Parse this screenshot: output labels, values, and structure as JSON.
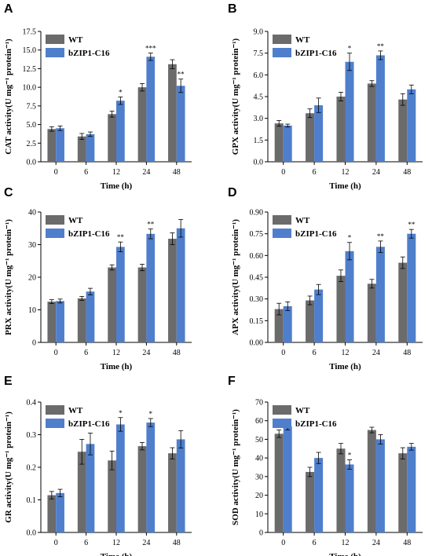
{
  "colors": {
    "wt": "#6b6b6b",
    "bzip": "#4f7fcc",
    "axis": "#000000",
    "error": "#000000"
  },
  "chart_data": [
    {
      "id": "A",
      "panel_label": "A",
      "type": "bar",
      "categories": [
        "0",
        "6",
        "12",
        "24",
        "48"
      ],
      "xlabel": "Time (h)",
      "ylabel": "CAT activity(U mg⁻¹ protein⁻¹)",
      "ylim": [
        0,
        17.5
      ],
      "yticks": [
        "0.0",
        "2.5",
        "5.0",
        "7.5",
        "10.0",
        "12.5",
        "15.0",
        "17.5"
      ],
      "legend_position": "top-left",
      "series": [
        {
          "name": "WT",
          "values": [
            4.4,
            3.4,
            6.4,
            10.0,
            13.1
          ],
          "errors": [
            0.3,
            0.4,
            0.4,
            0.5,
            0.6
          ],
          "significance": [
            "",
            "",
            "",
            "",
            ""
          ]
        },
        {
          "name": "bZIP1-C16",
          "values": [
            4.5,
            3.7,
            8.2,
            14.1,
            10.2
          ],
          "errors": [
            0.3,
            0.3,
            0.5,
            0.5,
            0.9
          ],
          "significance": [
            "",
            "",
            "*",
            "***",
            "**"
          ]
        }
      ]
    },
    {
      "id": "B",
      "panel_label": "B",
      "type": "bar",
      "categories": [
        "0",
        "6",
        "12",
        "24",
        "48"
      ],
      "xlabel": "Time (h)",
      "ylabel": "GPX activity(U mg⁻¹ protein⁻¹)",
      "ylim": [
        0,
        9.0
      ],
      "yticks": [
        "0.0",
        "1.5",
        "3.0",
        "4.5",
        "6.0",
        "7.5",
        "9.0"
      ],
      "legend_position": "top-left",
      "series": [
        {
          "name": "WT",
          "values": [
            2.65,
            3.35,
            4.5,
            5.4,
            4.3
          ],
          "errors": [
            0.2,
            0.3,
            0.3,
            0.2,
            0.4
          ],
          "significance": [
            "",
            "",
            "",
            "",
            ""
          ]
        },
        {
          "name": "bZIP1-C16",
          "values": [
            2.5,
            3.9,
            6.9,
            7.35,
            5.0
          ],
          "errors": [
            0.1,
            0.5,
            0.6,
            0.3,
            0.3
          ],
          "significance": [
            "",
            "",
            "*",
            "**",
            ""
          ]
        }
      ]
    },
    {
      "id": "C",
      "panel_label": "C",
      "type": "bar",
      "categories": [
        "0",
        "6",
        "12",
        "24",
        "48"
      ],
      "xlabel": "Time (h)",
      "ylabel": "PRX activity(U mg⁻¹ protein⁻¹)",
      "ylim": [
        0,
        40
      ],
      "yticks": [
        "0",
        "10",
        "20",
        "30",
        "40"
      ],
      "legend_position": "top-left",
      "series": [
        {
          "name": "WT",
          "values": [
            12.5,
            13.5,
            23.0,
            23.0,
            31.8
          ],
          "errors": [
            0.6,
            0.6,
            0.8,
            1.0,
            1.8
          ],
          "significance": [
            "",
            "",
            "",
            "",
            ""
          ]
        },
        {
          "name": "bZIP1-C16",
          "values": [
            12.7,
            15.6,
            29.3,
            33.3,
            35.0
          ],
          "errors": [
            0.6,
            1.0,
            1.5,
            1.5,
            2.7
          ],
          "significance": [
            "",
            "",
            "**",
            "**",
            ""
          ]
        }
      ]
    },
    {
      "id": "D",
      "panel_label": "D",
      "type": "bar",
      "categories": [
        "0",
        "6",
        "12",
        "24",
        "48"
      ],
      "xlabel": "Time (h)",
      "ylabel": "APX activity(U mg⁻¹ protein⁻¹)",
      "ylim": [
        0,
        0.9
      ],
      "yticks": [
        "0.00",
        "0.15",
        "0.30",
        "0.45",
        "0.60",
        "0.75",
        "0.90"
      ],
      "legend_position": "top-left",
      "series": [
        {
          "name": "WT",
          "values": [
            0.23,
            0.29,
            0.46,
            0.405,
            0.55
          ],
          "errors": [
            0.04,
            0.03,
            0.04,
            0.03,
            0.04
          ],
          "significance": [
            "",
            "",
            "",
            "",
            ""
          ]
        },
        {
          "name": "bZIP1-C16",
          "values": [
            0.25,
            0.365,
            0.63,
            0.66,
            0.75
          ],
          "errors": [
            0.03,
            0.035,
            0.06,
            0.04,
            0.03
          ],
          "significance": [
            "",
            "",
            "*",
            "**",
            "**"
          ]
        }
      ]
    },
    {
      "id": "E",
      "panel_label": "E",
      "type": "bar",
      "categories": [
        "0",
        "6",
        "12",
        "24",
        "48"
      ],
      "xlabel": "Time (h)",
      "ylabel": "GR activity(U mg⁻¹ protein⁻¹)",
      "ylim": [
        0,
        0.42
      ],
      "yticks": [
        "0.0",
        "0.1",
        "0.2",
        "0.3",
        "0.4"
      ],
      "legend_position": "top-left",
      "series": [
        {
          "name": "WT",
          "values": [
            0.12,
            0.26,
            0.232,
            0.278,
            0.255
          ],
          "errors": [
            0.012,
            0.04,
            0.03,
            0.012,
            0.018
          ],
          "significance": [
            "",
            "",
            "",
            "",
            ""
          ]
        },
        {
          "name": "bZIP1-C16",
          "values": [
            0.127,
            0.285,
            0.348,
            0.354,
            0.3
          ],
          "errors": [
            0.012,
            0.035,
            0.022,
            0.013,
            0.028
          ],
          "significance": [
            "",
            "",
            "*",
            "*",
            ""
          ]
        }
      ]
    },
    {
      "id": "F",
      "panel_label": "F",
      "type": "bar",
      "categories": [
        "0",
        "6",
        "12",
        "24",
        "48"
      ],
      "xlabel": "Time (h)",
      "ylabel": "SOD activity(U mg⁻¹ protein⁻¹)",
      "ylim": [
        0,
        70
      ],
      "yticks": [
        "0",
        "10",
        "20",
        "30",
        "40",
        "50",
        "60",
        "70"
      ],
      "legend_position": "top-left",
      "series": [
        {
          "name": "WT",
          "values": [
            53.0,
            32.5,
            45.0,
            55.0,
            42.5
          ],
          "errors": [
            2.0,
            2.5,
            2.8,
            1.5,
            3.0
          ],
          "significance": [
            "",
            "",
            "",
            "",
            ""
          ]
        },
        {
          "name": "bZIP1-C16",
          "values": [
            57.0,
            40.0,
            36.5,
            50.0,
            46.0
          ],
          "errors": [
            2.0,
            3.0,
            2.5,
            2.5,
            1.8
          ],
          "significance": [
            "",
            "",
            "*",
            "",
            ""
          ]
        }
      ]
    }
  ]
}
